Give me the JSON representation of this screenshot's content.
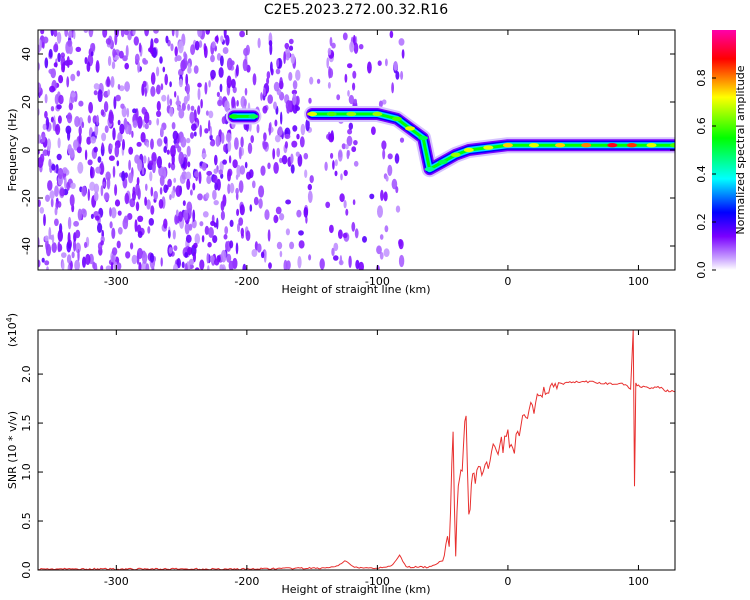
{
  "page_title": "C2E5.2023.272.00.32.R16",
  "chart_data": [
    {
      "type": "heatmap",
      "xlabel": "Height of straight line (km)",
      "ylabel": "Frequency (Hz)",
      "xlim": [
        -360,
        128
      ],
      "ylim": [
        -50,
        50
      ],
      "xticks": [
        -300,
        -200,
        -100,
        0,
        100
      ],
      "yticks": [
        -40,
        -20,
        0,
        20,
        40
      ],
      "colorbar": {
        "label": "Normalized spectral amplitude",
        "range": [
          0.0,
          1.0
        ],
        "ticks": [
          0.0,
          0.2,
          0.4,
          0.6,
          0.8
        ],
        "colors": [
          "#ffffff",
          "#7a00ff",
          "#0000ff",
          "#00ffff",
          "#00ff00",
          "#ffff00",
          "#ff0000",
          "#ff00aa"
        ]
      },
      "ridge": [
        {
          "x": -210,
          "y": 14,
          "amp": 0.55
        },
        {
          "x": -195,
          "y": 14,
          "amp": 0.5
        },
        {
          "x": -150,
          "y": 15,
          "amp": 0.7
        },
        {
          "x": -135,
          "y": 15,
          "amp": 0.6
        },
        {
          "x": -120,
          "y": 15,
          "amp": 0.65
        },
        {
          "x": -100,
          "y": 15,
          "amp": 0.65
        },
        {
          "x": -85,
          "y": 13,
          "amp": 0.6
        },
        {
          "x": -75,
          "y": 9,
          "amp": 0.7
        },
        {
          "x": -65,
          "y": 5,
          "amp": 0.5
        },
        {
          "x": -60,
          "y": -8,
          "amp": 0.45
        },
        {
          "x": -50,
          "y": -5,
          "amp": 0.5
        },
        {
          "x": -40,
          "y": -2,
          "amp": 0.65
        },
        {
          "x": -30,
          "y": 0,
          "amp": 0.7
        },
        {
          "x": -15,
          "y": 1,
          "amp": 0.7
        },
        {
          "x": 0,
          "y": 2,
          "amp": 0.75
        },
        {
          "x": 20,
          "y": 2,
          "amp": 0.7
        },
        {
          "x": 40,
          "y": 2,
          "amp": 0.75
        },
        {
          "x": 60,
          "y": 2,
          "amp": 0.8
        },
        {
          "x": 80,
          "y": 2,
          "amp": 0.9
        },
        {
          "x": 95,
          "y": 2,
          "amp": 0.85
        },
        {
          "x": 110,
          "y": 2,
          "amp": 0.7
        },
        {
          "x": 128,
          "y": 2,
          "amp": 0.6
        }
      ]
    },
    {
      "type": "line",
      "xlabel": "Height of straight line (km)",
      "ylabel": "SNR (10 * v/v)",
      "scale_note": "(x10",
      "scale_exp": "4",
      "scale_close": ")",
      "xlim": [
        -360,
        128
      ],
      "ylim": [
        0,
        2.45
      ],
      "xticks": [
        -300,
        -200,
        -100,
        0,
        100
      ],
      "yticks": [
        "0.0",
        "0.5",
        "1.0",
        "1.5",
        "2.0"
      ],
      "color": "#e8302f",
      "series": [
        {
          "x": [
            -360,
            -300,
            -200,
            -140,
            -130,
            -125,
            -120,
            -115,
            -100,
            -88,
            -83,
            -78,
            -60,
            -50,
            -45,
            -42,
            -40,
            -38,
            -35,
            -32,
            -30,
            -28,
            -25,
            -20,
            -15,
            -10,
            -5,
            0,
            5,
            10,
            15,
            20,
            25,
            30,
            40,
            50,
            60,
            70,
            80,
            90,
            94,
            96,
            97,
            98,
            100,
            110,
            115,
            120,
            128
          ],
          "y": [
            0.01,
            0.01,
            0.01,
            0.02,
            0.04,
            0.09,
            0.05,
            0.02,
            0.02,
            0.05,
            0.15,
            0.03,
            0.03,
            0.1,
            0.3,
            1.3,
            0.2,
            0.9,
            1.1,
            1.6,
            0.5,
            0.9,
            1.0,
            1.05,
            1.1,
            1.2,
            1.25,
            1.35,
            1.3,
            1.45,
            1.6,
            1.65,
            1.8,
            1.85,
            1.9,
            1.92,
            1.92,
            1.91,
            1.9,
            1.9,
            1.85,
            2.45,
            0.85,
            1.9,
            1.88,
            1.86,
            1.88,
            1.83,
            1.82
          ]
        }
      ]
    }
  ]
}
